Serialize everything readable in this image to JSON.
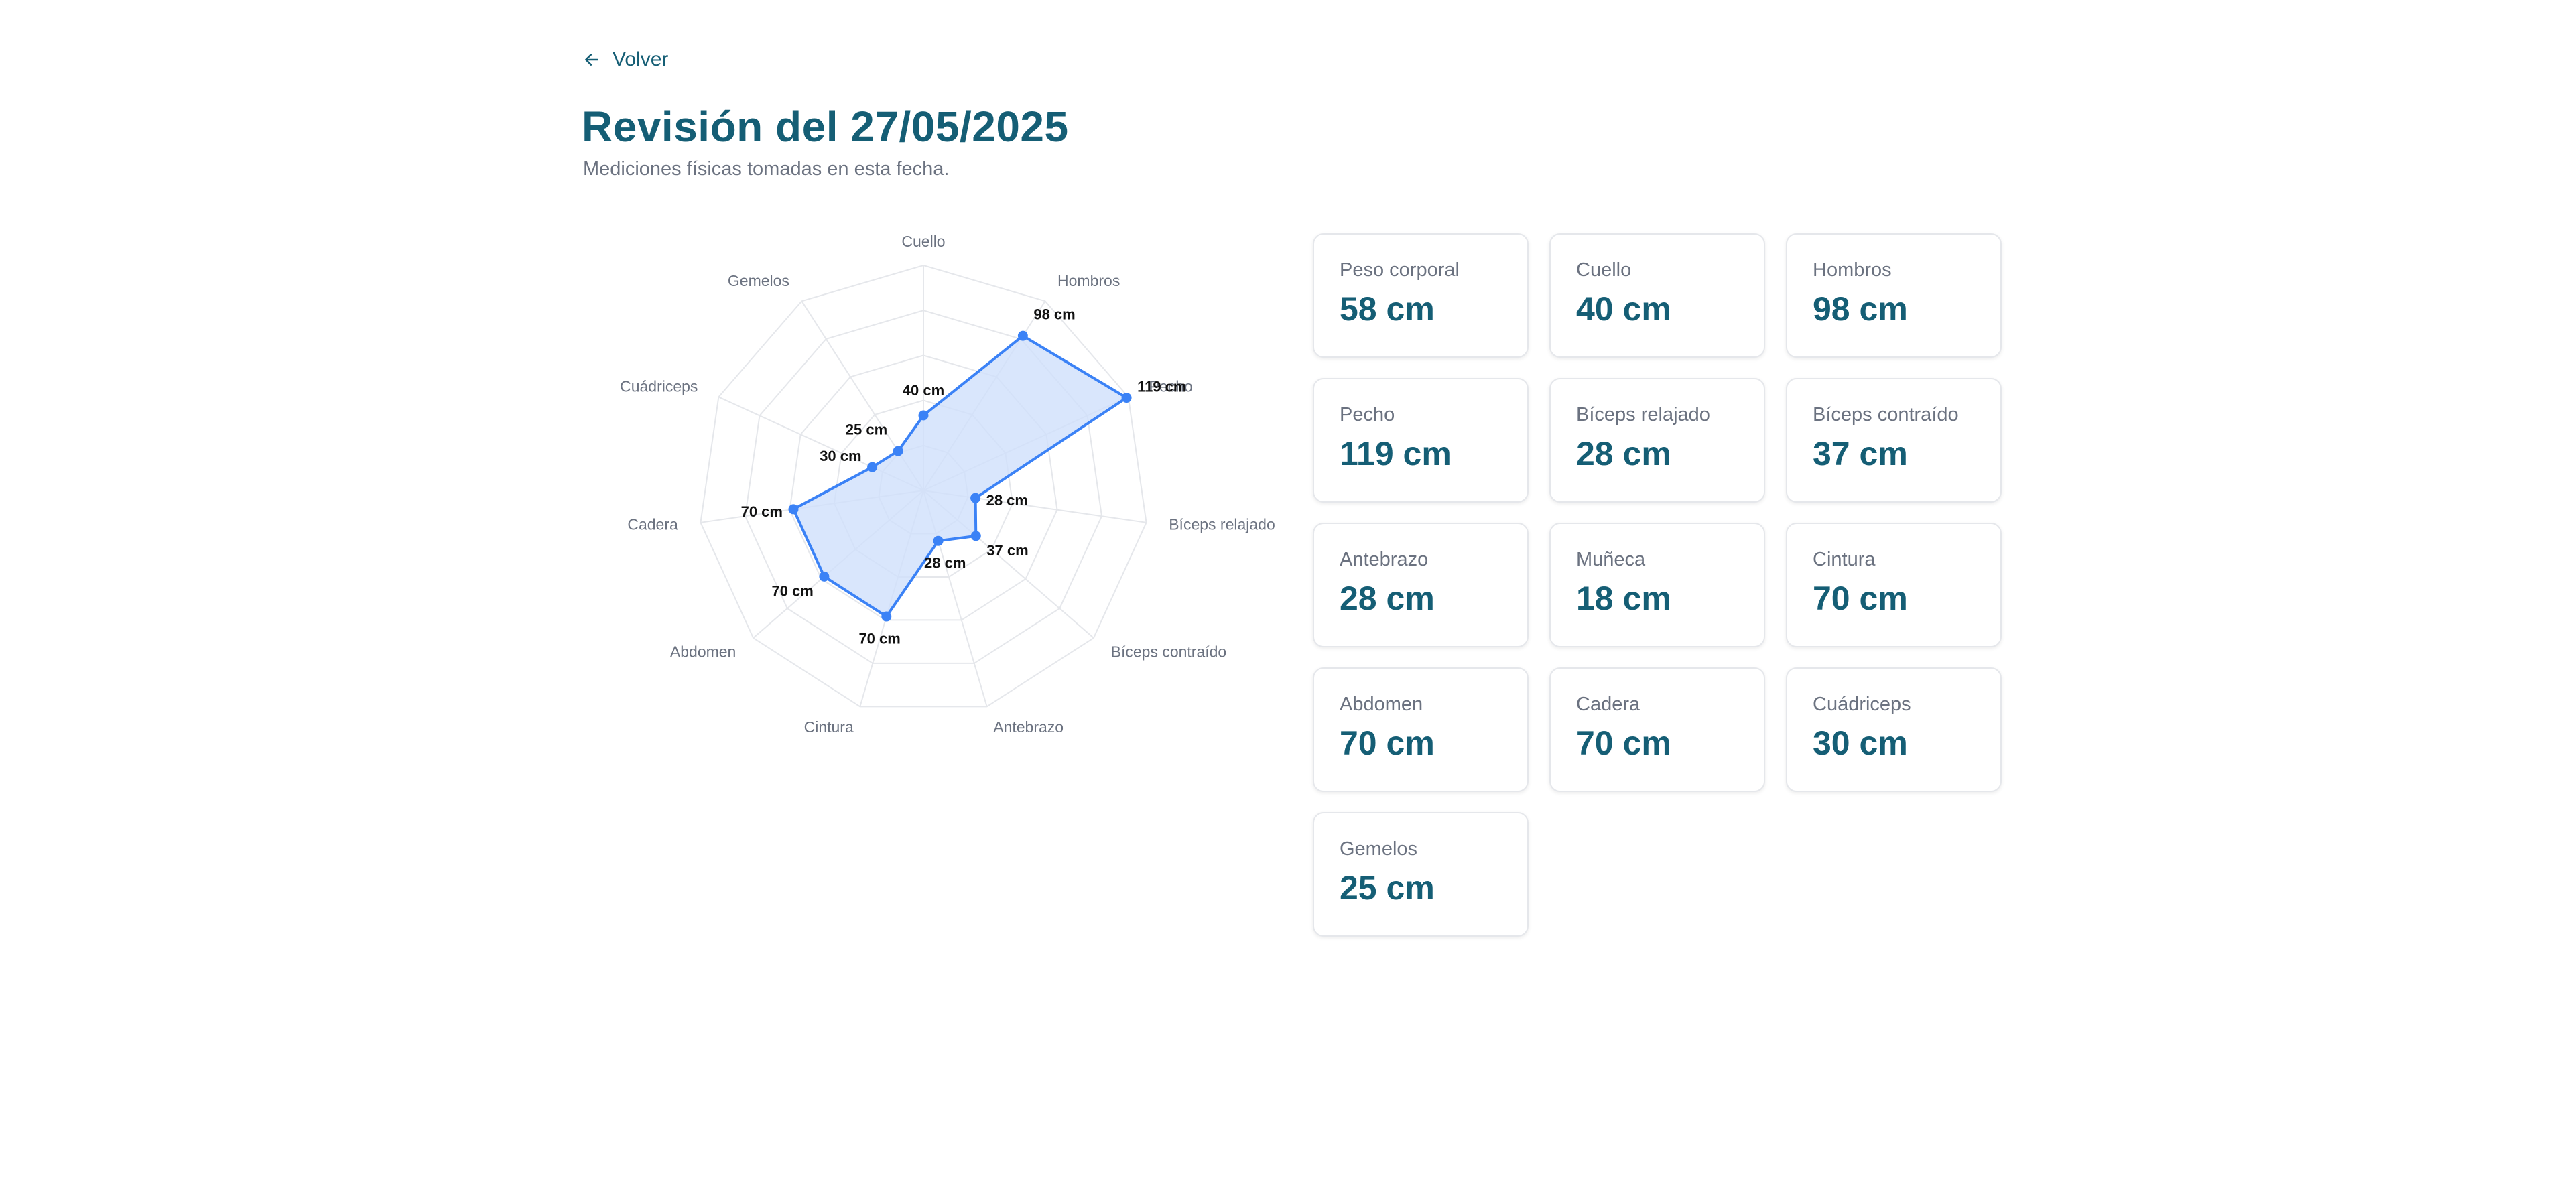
{
  "nav": {
    "back_label": "Volver"
  },
  "header": {
    "title": "Revisión del 27/05/2025",
    "subtitle": "Mediciones físicas tomadas en esta fecha."
  },
  "colors": {
    "accent": "#155e75",
    "series_stroke": "#3b82f6",
    "series_fill": "#cfe0fb",
    "grid": "#e5e7eb"
  },
  "chart_data": {
    "type": "radar",
    "title": "",
    "axes": [
      "Cuello",
      "Hombros",
      "Pecho",
      "Bíceps relajado",
      "Bíceps contraído",
      "Antebrazo",
      "Cintura",
      "Abdomen",
      "Cadera",
      "Cuádriceps",
      "Gemelos"
    ],
    "series": [
      {
        "values": [
          40,
          98,
          119,
          28,
          37,
          28,
          70,
          70,
          70,
          30,
          25
        ]
      }
    ],
    "value_labels": [
      "40 cm",
      "98 cm",
      "119 cm",
      "28 cm",
      "37 cm",
      "28 cm",
      "70 cm",
      "70 cm",
      "70 cm",
      "30 cm",
      "25 cm"
    ],
    "range": [
      0,
      120
    ],
    "grid_levels": 5,
    "grid": true
  },
  "measurements": [
    {
      "label": "Peso corporal",
      "value": "58 cm"
    },
    {
      "label": "Cuello",
      "value": "40 cm"
    },
    {
      "label": "Hombros",
      "value": "98 cm"
    },
    {
      "label": "Pecho",
      "value": "119 cm"
    },
    {
      "label": "Bíceps relajado",
      "value": "28 cm"
    },
    {
      "label": "Bíceps contraído",
      "value": "37 cm"
    },
    {
      "label": "Antebrazo",
      "value": "28 cm"
    },
    {
      "label": "Muñeca",
      "value": "18 cm"
    },
    {
      "label": "Cintura",
      "value": "70 cm"
    },
    {
      "label": "Abdomen",
      "value": "70 cm"
    },
    {
      "label": "Cadera",
      "value": "70 cm"
    },
    {
      "label": "Cuádriceps",
      "value": "30 cm"
    },
    {
      "label": "Gemelos",
      "value": "25 cm"
    }
  ]
}
